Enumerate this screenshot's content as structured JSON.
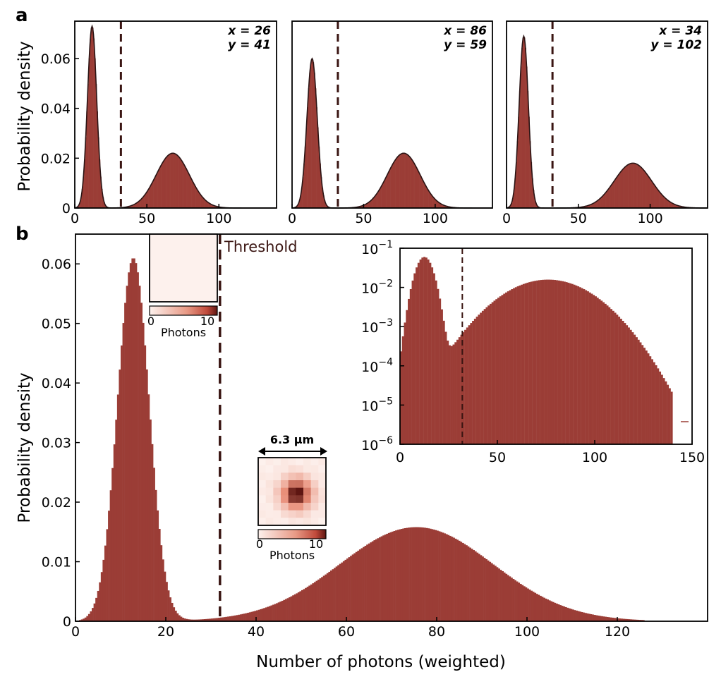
{
  "panels": {
    "a_label": "a",
    "b_label": "b"
  },
  "colors": {
    "bar": "#9b3d36",
    "fit": "#2a1414",
    "threshold": "#3a1512",
    "axis": "#000000",
    "heat_low": "#fbe9e3",
    "heat_high": "#5e1612"
  },
  "chart_data": [
    {
      "type": "bar",
      "panel": "a",
      "title": "",
      "ylabel": "Probability density",
      "xlabel": "",
      "xlim": [
        0,
        140
      ],
      "ylim": [
        0,
        0.075
      ],
      "x_ticks": [
        "0",
        "50",
        "100"
      ],
      "y_ticks": [
        "0",
        "0.02",
        "0.04",
        "0.06"
      ],
      "threshold": 32,
      "annotation": [
        "x = 26",
        "y = 41"
      ],
      "peaks": [
        {
          "center": 12,
          "sigma": 3.2,
          "height": 0.073
        },
        {
          "center": 68,
          "sigma": 11.5,
          "height": 0.022
        }
      ]
    },
    {
      "type": "bar",
      "panel": "a",
      "title": "",
      "ylabel": "",
      "xlabel": "",
      "xlim": [
        0,
        140
      ],
      "ylim": [
        0,
        0.075
      ],
      "x_ticks": [
        "0",
        "50",
        "100"
      ],
      "threshold": 32,
      "annotation": [
        "x = 86",
        "y = 59"
      ],
      "peaks": [
        {
          "center": 14,
          "sigma": 3.6,
          "height": 0.06
        },
        {
          "center": 78,
          "sigma": 11.5,
          "height": 0.022
        }
      ]
    },
    {
      "type": "bar",
      "panel": "a",
      "title": "",
      "ylabel": "",
      "xlabel": "",
      "xlim": [
        0,
        140
      ],
      "ylim": [
        0,
        0.075
      ],
      "x_ticks": [
        "0",
        "50",
        "100"
      ],
      "threshold": 32,
      "annotation": [
        "x = 34",
        "y = 102"
      ],
      "peaks": [
        {
          "center": 12,
          "sigma": 3.2,
          "height": 0.069
        },
        {
          "center": 88,
          "sigma": 13,
          "height": 0.018
        }
      ]
    },
    {
      "type": "bar",
      "panel": "b",
      "title": "",
      "ylabel": "Probability density",
      "xlabel": "Number of photons (weighted)",
      "xlim": [
        0,
        140
      ],
      "ylim": [
        0,
        0.065
      ],
      "x_ticks": [
        "0",
        "20",
        "40",
        "60",
        "80",
        "100",
        "120"
      ],
      "y_ticks": [
        "0",
        "0.01",
        "0.02",
        "0.03",
        "0.04",
        "0.05",
        "0.06"
      ],
      "threshold": 32,
      "threshold_label": "Threshold",
      "peaks": [
        {
          "center": 12.8,
          "sigma": 3.5,
          "height": 0.061
        },
        {
          "center": 75.5,
          "sigma": 17,
          "height": 0.0158
        }
      ],
      "inset_dark": {
        "colorbar_ticks": [
          "0",
          "10"
        ],
        "colorbar_label": "Photons"
      },
      "inset_bright": {
        "scale_label": "6.3 μm",
        "colorbar_ticks": [
          "0",
          "10"
        ],
        "colorbar_label": "Photons"
      }
    },
    {
      "type": "bar",
      "panel": "b-inset",
      "scale": "log",
      "xlim": [
        0,
        150
      ],
      "ylim": [
        1e-06,
        0.1
      ],
      "x_ticks": [
        "0",
        "50",
        "100",
        "150"
      ],
      "y_tick_base": [
        "10",
        "10",
        "10",
        "10",
        "10",
        "10"
      ],
      "y_tick_exp": [
        "−1",
        "−2",
        "−3",
        "−4",
        "−5",
        "−6"
      ],
      "threshold": 32,
      "peaks": [
        {
          "center": 12.5,
          "sigma": 3.6,
          "height": 0.06
        },
        {
          "center": 76,
          "sigma": 17.5,
          "height": 0.0158
        }
      ]
    }
  ]
}
